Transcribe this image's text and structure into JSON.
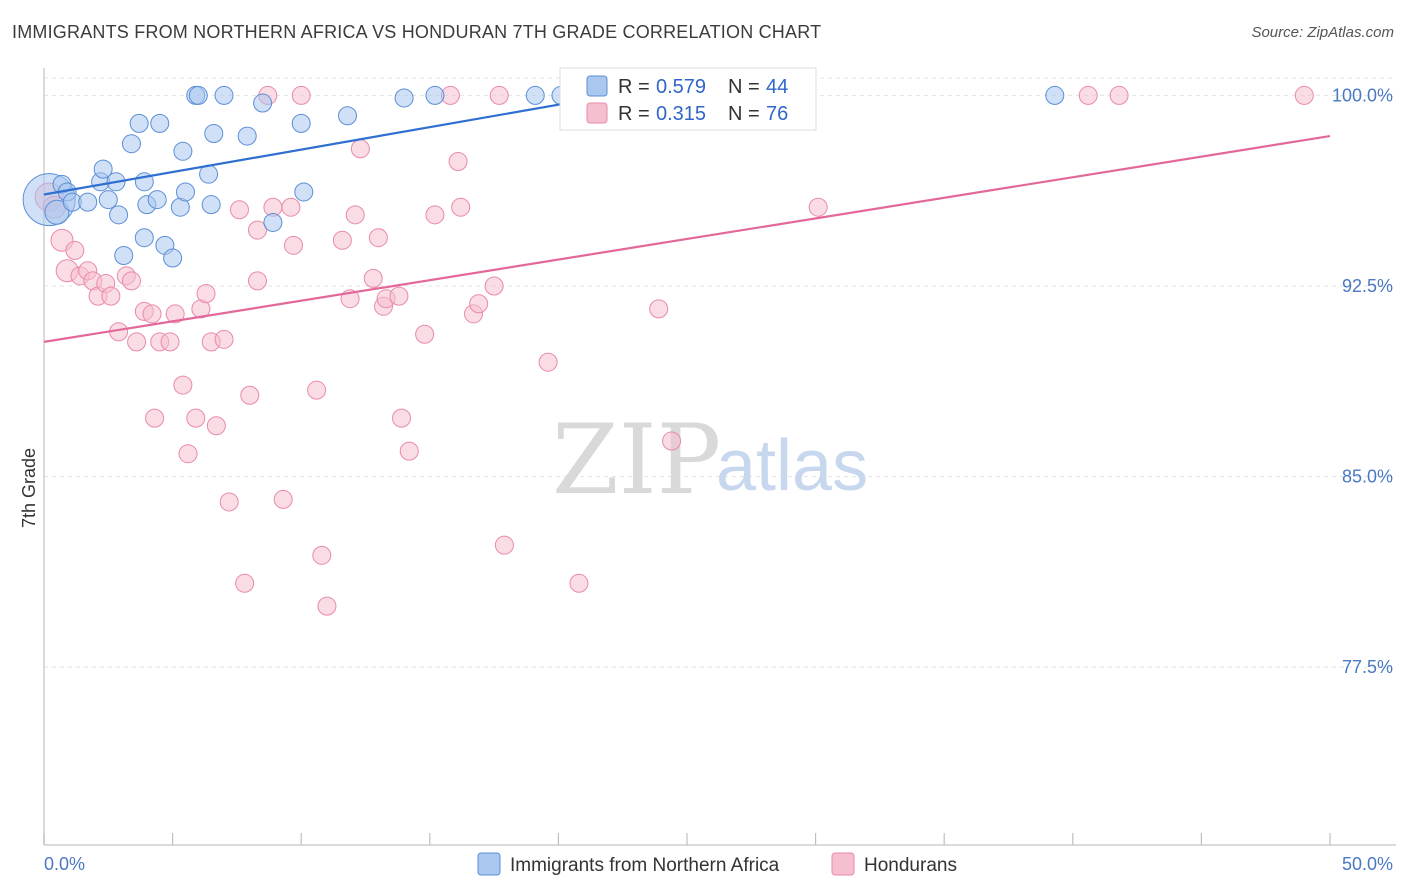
{
  "title": "IMMIGRANTS FROM NORTHERN AFRICA VS HONDURAN 7TH GRADE CORRELATION CHART",
  "source": "Source: ZipAtlas.com",
  "watermark": {
    "zip": "ZIP",
    "atlas": "atlas"
  },
  "colors": {
    "blue_fill": "#a9c7ef",
    "blue_stroke": "#5b8fd6",
    "blue_line": "#2f6fd0",
    "pink_fill": "#f6bfd0",
    "pink_stroke": "#e98aa9",
    "pink_line": "#e2689a",
    "tick_text": "#4a78c2",
    "grid": "#e3e3e3"
  },
  "legend": {
    "rows": [
      {
        "r_label": "R =",
        "r_value": "0.579",
        "n_label": "N =",
        "n_value": "44"
      },
      {
        "r_label": "R =",
        "r_value": "0.315",
        "n_label": "N =",
        "n_value": "76"
      }
    ]
  },
  "bottom_legend": [
    "Immigrants from Northern Africa",
    "Hondurans"
  ],
  "chart_data": {
    "type": "scatter",
    "title": "IMMIGRANTS FROM NORTHERN AFRICA VS HONDURAN 7TH GRADE CORRELATION CHART",
    "xlabel": "",
    "ylabel": "7th Grade",
    "xlim": [
      0,
      50
    ],
    "ylim": [
      70.5,
      101
    ],
    "x_tick_labels": [
      "0.0%",
      "50.0%"
    ],
    "y_ticks": [
      77.5,
      85.0,
      92.5,
      100.0
    ],
    "y_tick_labels": [
      "77.5%",
      "85.0%",
      "92.5%",
      "100.0%"
    ],
    "grid": true,
    "legend_position": "top-center",
    "series": [
      {
        "name": "Immigrants from Northern Africa",
        "color": "#a9c7ef",
        "trend": {
          "x": [
            0,
            21.5
          ],
          "y": [
            96.1,
            99.9
          ]
        },
        "points": [
          [
            0.2,
            95.9,
            26
          ],
          [
            0.5,
            95.4,
            12
          ],
          [
            0.7,
            96.5,
            9
          ],
          [
            0.9,
            96.2,
            9
          ],
          [
            1.1,
            95.8,
            9
          ],
          [
            1.7,
            95.8,
            9
          ],
          [
            2.2,
            96.6,
            9
          ],
          [
            2.3,
            97.1,
            9
          ],
          [
            2.5,
            95.9,
            9
          ],
          [
            2.8,
            96.6,
            9
          ],
          [
            2.9,
            95.3,
            9
          ],
          [
            3.1,
            93.7,
            9
          ],
          [
            3.4,
            98.1,
            9
          ],
          [
            3.7,
            98.9,
            9
          ],
          [
            3.9,
            96.6,
            9
          ],
          [
            3.9,
            94.4,
            9
          ],
          [
            4.0,
            95.7,
            9
          ],
          [
            4.4,
            95.9,
            9
          ],
          [
            4.5,
            98.9,
            9
          ],
          [
            4.7,
            94.1,
            9
          ],
          [
            5.0,
            93.6,
            9
          ],
          [
            5.3,
            95.6,
            9
          ],
          [
            5.4,
            97.8,
            9
          ],
          [
            5.5,
            96.2,
            9
          ],
          [
            5.9,
            100.0,
            9
          ],
          [
            6.0,
            100.0,
            9
          ],
          [
            6.4,
            96.9,
            9
          ],
          [
            6.5,
            95.7,
            9
          ],
          [
            6.6,
            98.5,
            9
          ],
          [
            7.0,
            100.0,
            9
          ],
          [
            7.9,
            98.4,
            9
          ],
          [
            8.5,
            99.7,
            9
          ],
          [
            8.9,
            95.0,
            9
          ],
          [
            10.0,
            98.9,
            9
          ],
          [
            10.1,
            96.2,
            9
          ],
          [
            11.8,
            99.2,
            9
          ],
          [
            14.0,
            99.9,
            9
          ],
          [
            15.2,
            100.0,
            9
          ],
          [
            19.1,
            100.0,
            9
          ],
          [
            20.1,
            100.0,
            9
          ],
          [
            39.3,
            100.0,
            9
          ]
        ]
      },
      {
        "name": "Hondurans",
        "color": "#f6bfd0",
        "trend": {
          "x": [
            0,
            50
          ],
          "y": [
            90.3,
            98.4
          ]
        },
        "points": [
          [
            0.2,
            96.0,
            14
          ],
          [
            0.4,
            95.6,
            11
          ],
          [
            0.7,
            94.3,
            11
          ],
          [
            0.9,
            93.1,
            11
          ],
          [
            1.2,
            93.9,
            9
          ],
          [
            1.4,
            92.9,
            9
          ],
          [
            1.7,
            93.1,
            9
          ],
          [
            1.9,
            92.7,
            9
          ],
          [
            2.1,
            92.1,
            9
          ],
          [
            2.4,
            92.6,
            9
          ],
          [
            2.6,
            92.1,
            9
          ],
          [
            2.9,
            90.7,
            9
          ],
          [
            3.2,
            92.9,
            9
          ],
          [
            3.4,
            92.7,
            9
          ],
          [
            3.6,
            90.3,
            9
          ],
          [
            3.9,
            91.5,
            9
          ],
          [
            4.2,
            91.4,
            9
          ],
          [
            4.3,
            87.3,
            9
          ],
          [
            4.5,
            90.3,
            9
          ],
          [
            4.9,
            90.3,
            9
          ],
          [
            5.1,
            91.4,
            9
          ],
          [
            5.4,
            88.6,
            9
          ],
          [
            5.6,
            85.9,
            9
          ],
          [
            5.9,
            87.3,
            9
          ],
          [
            6.1,
            91.6,
            9
          ],
          [
            6.3,
            92.2,
            9
          ],
          [
            6.5,
            90.3,
            9
          ],
          [
            6.7,
            87.0,
            9
          ],
          [
            7.0,
            90.4,
            9
          ],
          [
            7.2,
            84.0,
            9
          ],
          [
            7.6,
            95.5,
            9
          ],
          [
            7.8,
            80.8,
            9
          ],
          [
            8.0,
            88.2,
            9
          ],
          [
            8.3,
            92.7,
            9
          ],
          [
            8.3,
            94.7,
            9
          ],
          [
            8.7,
            100.0,
            9
          ],
          [
            8.9,
            95.6,
            9
          ],
          [
            9.3,
            84.1,
            9
          ],
          [
            9.6,
            95.6,
            9
          ],
          [
            9.7,
            94.1,
            9
          ],
          [
            10.0,
            100.0,
            9
          ],
          [
            10.6,
            88.4,
            9
          ],
          [
            10.8,
            81.9,
            9
          ],
          [
            11.0,
            79.9,
            9
          ],
          [
            11.6,
            94.3,
            9
          ],
          [
            11.9,
            92.0,
            9
          ],
          [
            12.1,
            95.3,
            9
          ],
          [
            12.3,
            97.9,
            9
          ],
          [
            12.8,
            92.8,
            9
          ],
          [
            13.0,
            94.4,
            9
          ],
          [
            13.2,
            91.7,
            9
          ],
          [
            13.3,
            92.0,
            9
          ],
          [
            13.8,
            92.1,
            9
          ],
          [
            13.9,
            87.3,
            9
          ],
          [
            14.2,
            86.0,
            9
          ],
          [
            14.8,
            90.6,
            9
          ],
          [
            15.2,
            95.3,
            9
          ],
          [
            15.8,
            100.0,
            9
          ],
          [
            16.1,
            97.4,
            9
          ],
          [
            16.2,
            95.6,
            9
          ],
          [
            16.7,
            91.4,
            9
          ],
          [
            16.9,
            91.8,
            9
          ],
          [
            17.5,
            92.5,
            9
          ],
          [
            17.7,
            100.0,
            9
          ],
          [
            17.9,
            82.3,
            9
          ],
          [
            19.6,
            89.5,
            9
          ],
          [
            20.8,
            80.8,
            9
          ],
          [
            23.9,
            91.6,
            9
          ],
          [
            24.4,
            86.4,
            9
          ],
          [
            27.9,
            100.0,
            9
          ],
          [
            30.1,
            95.6,
            9
          ],
          [
            40.6,
            100.0,
            9
          ],
          [
            41.8,
            100.0,
            9
          ],
          [
            49.0,
            100.0,
            9
          ]
        ]
      }
    ]
  }
}
